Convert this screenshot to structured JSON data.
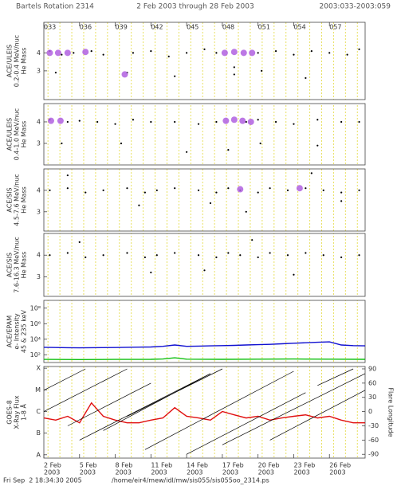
{
  "header": {
    "title": "Bartels Rotation 2314",
    "range": "2 Feb 2003 through 28 Feb 2003",
    "doy_range": "2003:033-2003:059"
  },
  "footer": {
    "timestamp": "Fri Sep  2 18:34:30 2005",
    "file": "/home/eir4/mew/idl/mw/sis055/sis055oo_2314.ps"
  },
  "chart_data": [
    {
      "type": "scatter",
      "ylabel": [
        "ACE/ULEIS",
        "0.2-0.4 MeV/nuc",
        "He Mass"
      ],
      "xlim": [
        33,
        60
      ],
      "ylim": [
        1.4,
        5.7
      ],
      "yticks": [
        3,
        4
      ],
      "xticks": [
        {
          "value": 33,
          "label": "033"
        },
        {
          "value": 36,
          "label": "036"
        },
        {
          "value": 39,
          "label": "039"
        },
        {
          "value": 42,
          "label": "042"
        },
        {
          "value": 45,
          "label": "045"
        },
        {
          "value": 48,
          "label": "048"
        },
        {
          "value": 51,
          "label": "051"
        },
        {
          "value": 54,
          "label": "054"
        },
        {
          "value": 57,
          "label": "057"
        }
      ],
      "series": [
        {
          "type": "scatter",
          "color": "#000000",
          "x": [
            33.5,
            34.5,
            35.5,
            37,
            38,
            40.5,
            42,
            43.5,
            45,
            46.5,
            47.5,
            49,
            51,
            52.5,
            54,
            55.5,
            57,
            58.5,
            59.5,
            34,
            40,
            44,
            49,
            51.3,
            55
          ],
          "values": [
            4.1,
            3.9,
            4,
            4.1,
            3.9,
            4,
            4.1,
            3.8,
            4,
            4.2,
            4,
            3.2,
            4,
            4.1,
            3.9,
            4.1,
            4,
            3.9,
            4.2,
            2.9,
            2.9,
            2.7,
            2.8,
            3.0,
            2.6
          ]
        },
        {
          "type": "scatter",
          "color": "#b060e0",
          "x": [
            33.5,
            34.2,
            35,
            36.5,
            39.8,
            48.2,
            49,
            49.8,
            50.5
          ],
          "values": [
            4.0,
            4.0,
            4.0,
            4.05,
            2.8,
            4.0,
            4.05,
            4.0,
            4.0
          ]
        }
      ]
    },
    {
      "type": "scatter",
      "ylabel": [
        "ACE/ULEIS",
        "0.4-1.0 MeV/nuc",
        "He Mass"
      ],
      "xlim": [
        33,
        60
      ],
      "ylim": [
        2.0,
        4.85
      ],
      "yticks": [
        3,
        4
      ],
      "series": [
        {
          "type": "scatter",
          "color": "#000000",
          "x": [
            33.5,
            35,
            36,
            37.5,
            39,
            40.5,
            42,
            44,
            46,
            47.5,
            50,
            51,
            52.5,
            54,
            56,
            58,
            59.5,
            34.5,
            39.5,
            45,
            48.5,
            51.2,
            56
          ],
          "values": [
            4.1,
            4,
            4.05,
            4,
            3.9,
            4.1,
            4,
            4,
            3.9,
            4,
            4,
            4.1,
            4,
            3.9,
            4.1,
            4,
            4,
            3.0,
            3.0,
            2.6,
            2.7,
            3.0,
            2.9
          ]
        },
        {
          "type": "scatter",
          "color": "#b060e0",
          "x": [
            33.6,
            34.4,
            48.3,
            49,
            49.7,
            50.4
          ],
          "values": [
            4.05,
            4.05,
            4.05,
            4.1,
            4.05,
            4.0
          ]
        }
      ]
    },
    {
      "type": "scatter",
      "ylabel": [
        "ACE/SIS",
        "4.5-7.6 MeV/nuc",
        "He Mass"
      ],
      "xlim": [
        33,
        60
      ],
      "ylim": [
        2.1,
        5.0
      ],
      "yticks": [
        3,
        4
      ],
      "series": [
        {
          "type": "scatter",
          "color": "#000000",
          "x": [
            33.5,
            35,
            36.5,
            38,
            40,
            41.5,
            42.5,
            44,
            46,
            47.5,
            48.5,
            49.5,
            51,
            52,
            53.5,
            55,
            56.5,
            58,
            59.5,
            35,
            41,
            47,
            50,
            55.5,
            58
          ],
          "values": [
            4.0,
            4.1,
            3.9,
            4.0,
            4.1,
            3.9,
            4.0,
            4.1,
            4.0,
            3.9,
            4.1,
            4.0,
            3.9,
            4.1,
            4.0,
            4.1,
            4.0,
            3.9,
            4.0,
            4.7,
            3.3,
            3.4,
            3.0,
            4.8,
            3.5
          ]
        },
        {
          "type": "scatter",
          "color": "#b060e0",
          "x": [
            49.5,
            54.5
          ],
          "values": [
            4.05,
            4.1
          ]
        }
      ]
    },
    {
      "type": "scatter",
      "ylabel": [
        "ACE/SIS",
        "7.6-16.3 MeV/nuc",
        "He Mass"
      ],
      "xlim": [
        33,
        60
      ],
      "ylim": [
        2.1,
        5.0
      ],
      "yticks": [
        3,
        4
      ],
      "series": [
        {
          "type": "scatter",
          "color": "#000000",
          "x": [
            33.5,
            35,
            36.5,
            38,
            40,
            41.5,
            42.5,
            44,
            46,
            47.5,
            48.5,
            49.5,
            51,
            52,
            53.5,
            55,
            56.5,
            58,
            59.5,
            36,
            42,
            46.5,
            50.5,
            54
          ],
          "values": [
            4.0,
            4.1,
            3.9,
            4.0,
            4.1,
            3.9,
            4.0,
            4.1,
            4.0,
            3.9,
            4.1,
            4.0,
            3.9,
            4.1,
            4.0,
            4.1,
            4.0,
            3.9,
            4.0,
            4.6,
            3.2,
            3.3,
            4.7,
            3.1
          ]
        }
      ]
    },
    {
      "type": "line",
      "ylabel": [
        "ACE/EPAM",
        "e- Intensity",
        "45 & 235 keV"
      ],
      "xlim": [
        33,
        60
      ],
      "ylim": [
        10,
        1000000000
      ],
      "ylog": true,
      "yticks": [
        {
          "value": 100,
          "label": "10²"
        },
        {
          "value": 10000,
          "label": "10⁴"
        },
        {
          "value": 1000000,
          "label": "10⁶"
        },
        {
          "value": 100000000,
          "label": "10⁸"
        }
      ],
      "series": [
        {
          "type": "line",
          "color": "#1010d0",
          "x": [
            33,
            34,
            35,
            36,
            37,
            38,
            39,
            40,
            41,
            42,
            43,
            44,
            45,
            46,
            47,
            48,
            49,
            50,
            51,
            52,
            53,
            54,
            55,
            56,
            57,
            58,
            59,
            60
          ],
          "values": [
            900,
            850,
            800,
            780,
            800,
            820,
            850,
            900,
            950,
            1000,
            1200,
            1800,
            1200,
            1300,
            1400,
            1500,
            1600,
            1800,
            2000,
            2200,
            2600,
            3000,
            3500,
            4000,
            4500,
            1800,
            1500,
            1400
          ]
        },
        {
          "type": "line",
          "color": "#10c010",
          "x": [
            33,
            36,
            39,
            42,
            43,
            44,
            45,
            48,
            51,
            54,
            57,
            60
          ],
          "values": [
            25,
            24,
            25,
            26,
            28,
            40,
            27,
            26,
            27,
            28,
            27,
            26
          ]
        }
      ]
    },
    {
      "type": "line",
      "ylabel": [
        "GOES-8",
        "X-Ray Flux",
        "1-8 Å"
      ],
      "y2label": "Flare Longitude",
      "xlim": [
        33,
        60
      ],
      "ylim": [
        7e-09,
        0.00012
      ],
      "ylog": true,
      "yticks": [
        {
          "value": 1e-08,
          "label": "A"
        },
        {
          "value": 1e-07,
          "label": "B"
        },
        {
          "value": 1e-06,
          "label": "C"
        },
        {
          "value": 1e-05,
          "label": "M"
        },
        {
          "value": 0.0001,
          "label": "X"
        }
      ],
      "y2lim": [
        -98,
        95
      ],
      "y2ticks": [
        -90,
        -60,
        -30,
        0,
        30,
        60,
        90
      ],
      "xticks": [
        {
          "value": 33,
          "label": "2 Feb",
          "year": "2003"
        },
        {
          "value": 36,
          "label": "5 Feb",
          "year": "2003"
        },
        {
          "value": 39,
          "label": "8 Feb",
          "year": "2003"
        },
        {
          "value": 42,
          "label": "11 Feb",
          "year": "2003"
        },
        {
          "value": 45,
          "label": "14 Feb",
          "year": "2003"
        },
        {
          "value": 48,
          "label": "17 Feb",
          "year": "2003"
        },
        {
          "value": 51,
          "label": "20 Feb",
          "year": "2003"
        },
        {
          "value": 54,
          "label": "23 Feb",
          "year": "2003"
        },
        {
          "value": 57,
          "label": "26 Feb",
          "year": "2003"
        }
      ],
      "series": [
        {
          "type": "line",
          "color": "#e01010",
          "x": [
            33,
            34,
            35,
            36,
            37,
            38,
            39,
            40,
            41,
            42,
            43,
            44,
            45,
            46,
            47,
            48,
            49,
            50,
            51,
            52,
            53,
            54,
            55,
            56,
            57,
            58,
            59,
            60
          ],
          "values": [
            5e-07,
            4e-07,
            6e-07,
            3e-07,
            2.5e-06,
            6e-07,
            4e-07,
            3e-07,
            3e-07,
            4e-07,
            5e-07,
            1.5e-06,
            6e-07,
            5e-07,
            4e-07,
            1e-06,
            7e-07,
            5e-07,
            6e-07,
            4e-07,
            5e-07,
            6e-07,
            7e-07,
            5e-07,
            6e-07,
            4e-07,
            3e-07,
            3e-07
          ]
        },
        {
          "type": "line",
          "color": "#000000",
          "axis": "y2",
          "x": [
            33,
            40
          ],
          "values": [
            0,
            90
          ]
        },
        {
          "type": "line",
          "color": "#000000",
          "axis": "y2",
          "x": [
            33,
            36.5
          ],
          "values": [
            45,
            90
          ]
        },
        {
          "type": "line",
          "color": "#000000",
          "axis": "y2",
          "x": [
            35,
            42
          ],
          "values": [
            -30,
            60
          ]
        },
        {
          "type": "line",
          "color": "#000000",
          "axis": "y2",
          "x": [
            36,
            47
          ],
          "values": [
            -60,
            80
          ]
        },
        {
          "type": "line",
          "color": "#000000",
          "axis": "y2",
          "x": [
            38,
            47
          ],
          "values": [
            -40,
            80
          ]
        },
        {
          "type": "line",
          "color": "#000000",
          "axis": "y2",
          "x": [
            40,
            48
          ],
          "values": [
            -10,
            90
          ]
        },
        {
          "type": "line",
          "color": "#000000",
          "axis": "y2",
          "x": [
            41.5,
            54
          ],
          "values": [
            -80,
            85
          ]
        },
        {
          "type": "line",
          "color": "#000000",
          "axis": "y2",
          "x": [
            45,
            55
          ],
          "values": [
            -90,
            40
          ]
        },
        {
          "type": "line",
          "color": "#000000",
          "axis": "y2",
          "x": [
            48,
            60
          ],
          "values": [
            -70,
            80
          ]
        },
        {
          "type": "line",
          "color": "#000000",
          "axis": "y2",
          "x": [
            52,
            60
          ],
          "values": [
            -60,
            45
          ]
        },
        {
          "type": "line",
          "color": "#000000",
          "axis": "y2",
          "x": [
            56,
            59
          ],
          "values": [
            55,
            90
          ]
        }
      ]
    }
  ]
}
